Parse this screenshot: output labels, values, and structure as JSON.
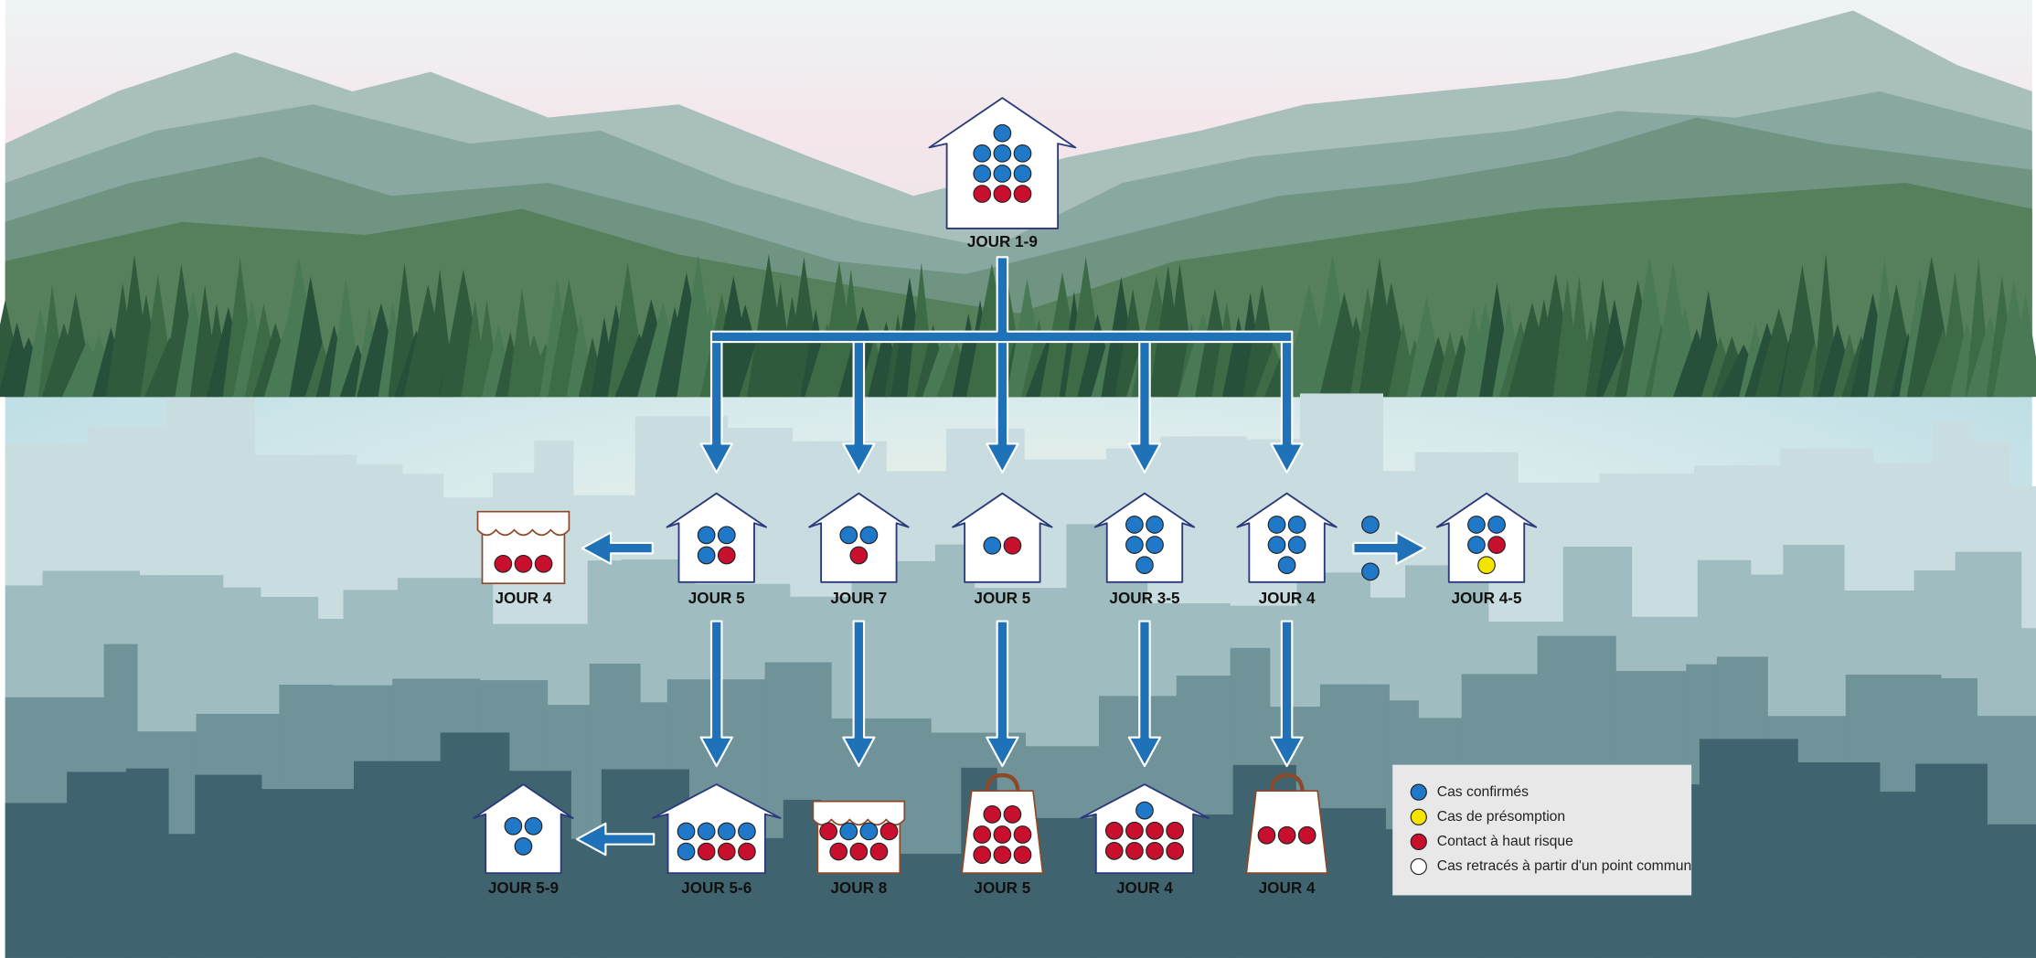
{
  "nodes": [
    {
      "label": "JOUR 1-9"
    },
    {
      "label": "JOUR 4"
    },
    {
      "label": "JOUR 5"
    },
    {
      "label": "JOUR 7"
    },
    {
      "label": "JOUR 5"
    },
    {
      "label": "JOUR 3-5"
    },
    {
      "label": "JOUR 4"
    },
    {
      "label": "JOUR 4-5"
    },
    {
      "label": "JOUR 5-9"
    },
    {
      "label": "JOUR 5-6"
    },
    {
      "label": "JOUR 8"
    },
    {
      "label": "JOUR 5"
    },
    {
      "label": "JOUR 4"
    },
    {
      "label": "JOUR 4"
    }
  ],
  "legend": [
    {
      "label": "Cas confirmés"
    },
    {
      "label": "Cas de présomption"
    },
    {
      "label": "Contact à haut risque"
    },
    {
      "label": "Cas retracés à partir d'un point commun"
    }
  ]
}
